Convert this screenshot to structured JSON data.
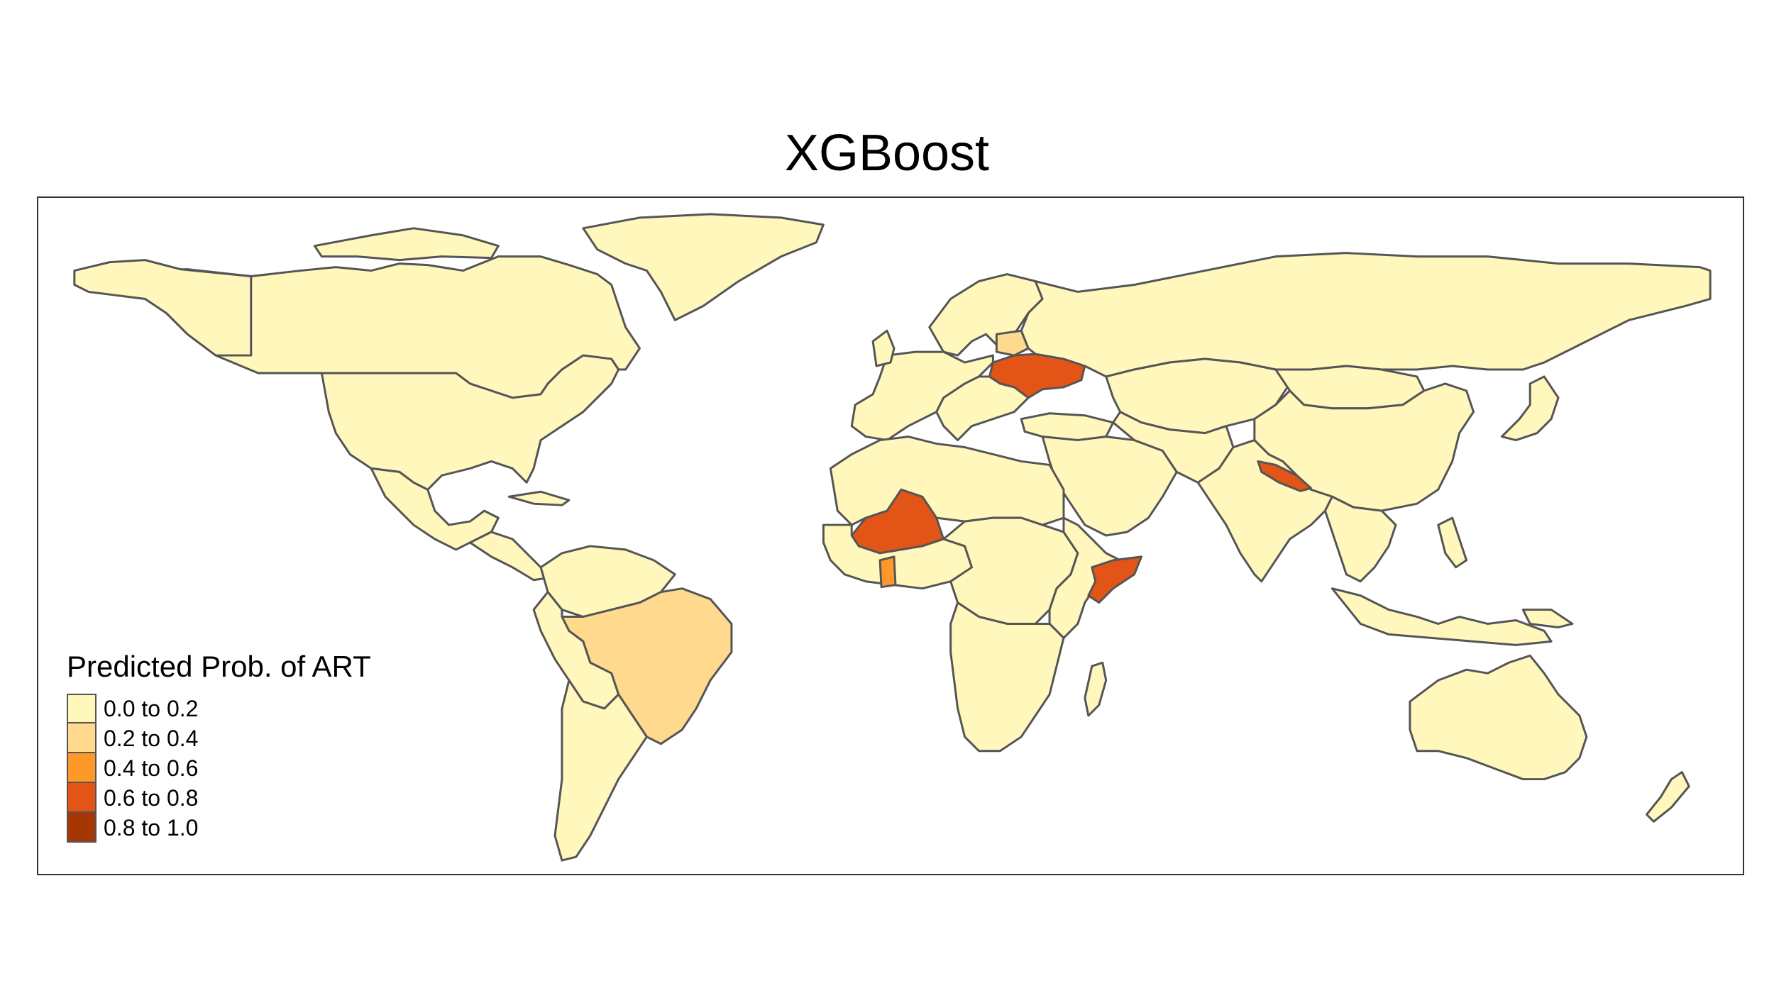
{
  "title": "XGBoost",
  "legend": {
    "title": "Predicted Prob. of ART",
    "items": [
      {
        "label": "0.0 to 0.2",
        "color": "#FFF7BC"
      },
      {
        "label": "0.2 to 0.4",
        "color": "#FED98E"
      },
      {
        "label": "0.4 to 0.6",
        "color": "#FE9929"
      },
      {
        "label": "0.6 to 0.8",
        "color": "#E25516"
      },
      {
        "label": "0.8 to 1.0",
        "color": "#A63603"
      }
    ]
  },
  "map_data": {
    "variable": "Predicted Prob. of ART",
    "highlighted_regions": [
      {
        "region": "Brazil",
        "class": "0.2 to 0.4"
      },
      {
        "region": "Belarus",
        "class": "0.2 to 0.4"
      },
      {
        "region": "Ghana",
        "class": "0.4 to 0.6"
      },
      {
        "region": "Mali",
        "class": "0.6 to 0.8"
      },
      {
        "region": "Ukraine",
        "class": "0.6 to 0.8"
      },
      {
        "region": "Nepal",
        "class": "0.6 to 0.8"
      },
      {
        "region": "Somalia",
        "class": "0.6 to 0.8"
      }
    ],
    "default_class": "0.0 to 0.2"
  }
}
